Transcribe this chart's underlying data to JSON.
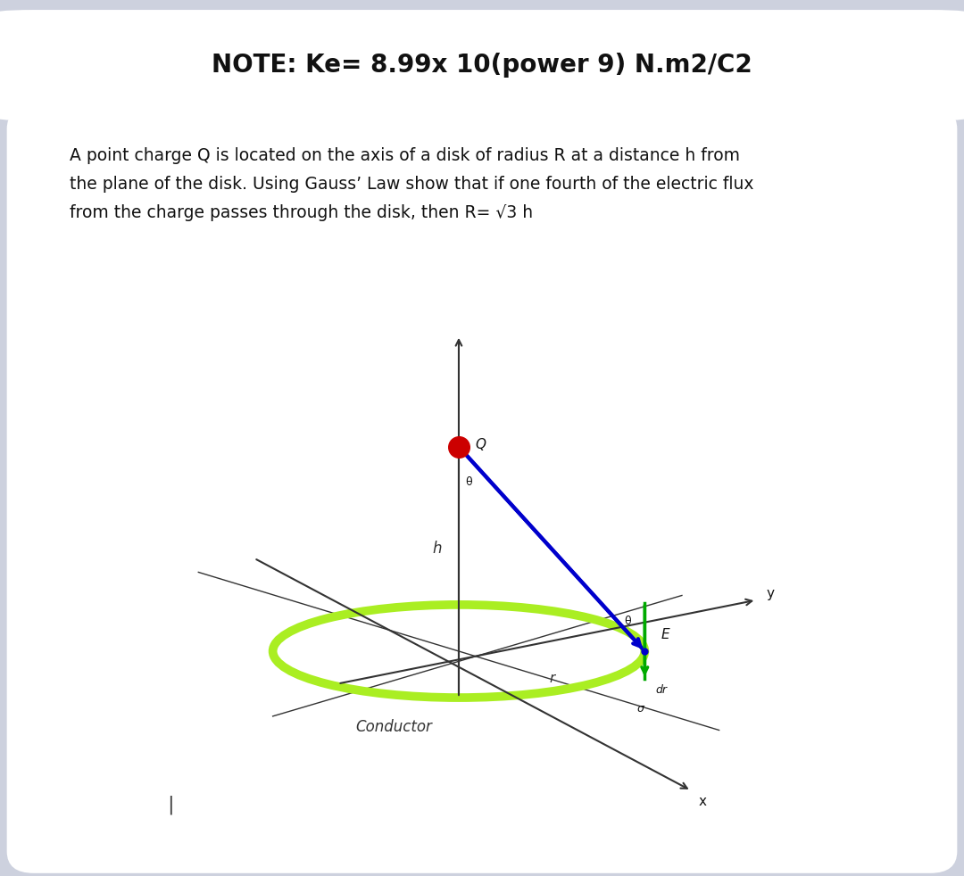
{
  "bg_color": "#cdd1de",
  "card1_color": "#ffffff",
  "card2_color": "#ffffff",
  "title_text": "NOTE: Ke= 8.99x 10(power 9) N.m2/C2",
  "title_fontsize": 20,
  "body_text_line1": "A point charge Q is located on the axis of a disk of radius R at a distance h from",
  "body_text_line2": "the plane of the disk. Using Gauss’ Law show that if one fourth of the electric flux",
  "body_text_line3": "from the charge passes through the disk, then R= √3 h",
  "body_fontsize": 13.5,
  "ellipse_color": "#aaee22",
  "ellipse_lw": 7,
  "charge_color": "#cc0000",
  "blue_line_color": "#0000cc",
  "green_arrow_color": "#00aa00",
  "axis_color": "#333333"
}
